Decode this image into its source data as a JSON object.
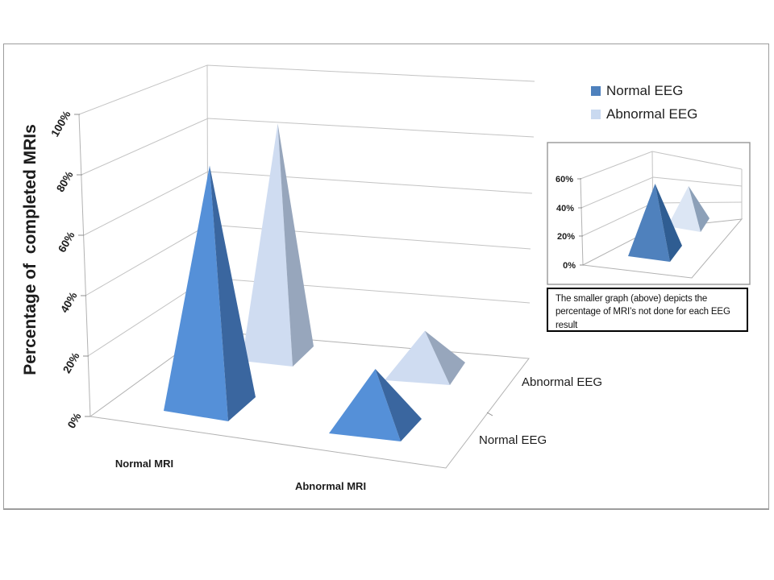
{
  "legend": {
    "items": [
      {
        "label": "Normal EEG",
        "color": "#4E81BD"
      },
      {
        "label": "Abnormal EEG",
        "color": "#C9D9F0"
      }
    ]
  },
  "caption": {
    "lines": [
      "The smaller graph (above) depicts the",
      "percentage of MRI’s not done for each EEG",
      "result"
    ]
  },
  "chart_data": [
    {
      "type": "bar",
      "subtype": "3d-pyramid",
      "title": "",
      "ylabel": "Percentage of  completed MRIs",
      "categories": [
        "Normal MRI",
        "Abnormal MRI"
      ],
      "series": [
        {
          "name": "Normal EEG",
          "values": [
            80,
            20
          ],
          "color_face": "#5590D8",
          "color_side": "#3A669F"
        },
        {
          "name": "Abnormal EEG",
          "values": [
            85,
            15
          ],
          "color_face": "#CFDCF1",
          "color_side": "#97A6BC"
        }
      ],
      "series_axis_labels": [
        "Normal EEG",
        "Abnormal EEG"
      ],
      "ylim": [
        0,
        100
      ],
      "yticklabels": [
        "0%",
        "20%",
        "40%",
        "60%",
        "80%",
        "100%"
      ],
      "grid": true,
      "legend_position": "top-right"
    },
    {
      "type": "bar",
      "subtype": "3d-pyramid",
      "title": "",
      "note": "percentage of MRI’s not done for each EEG result",
      "categories": [
        ""
      ],
      "series": [
        {
          "name": "Normal EEG",
          "values": [
            50
          ],
          "color_face": "#4F81BD",
          "color_side": "#2F5D92"
        },
        {
          "name": "Abnormal EEG",
          "values": [
            30
          ],
          "color_face": "#DCE6F4",
          "color_side": "#8CA0B8"
        }
      ],
      "ylim": [
        0,
        60
      ],
      "yticklabels": [
        "0%",
        "20%",
        "40%",
        "60%"
      ],
      "grid": true
    }
  ]
}
